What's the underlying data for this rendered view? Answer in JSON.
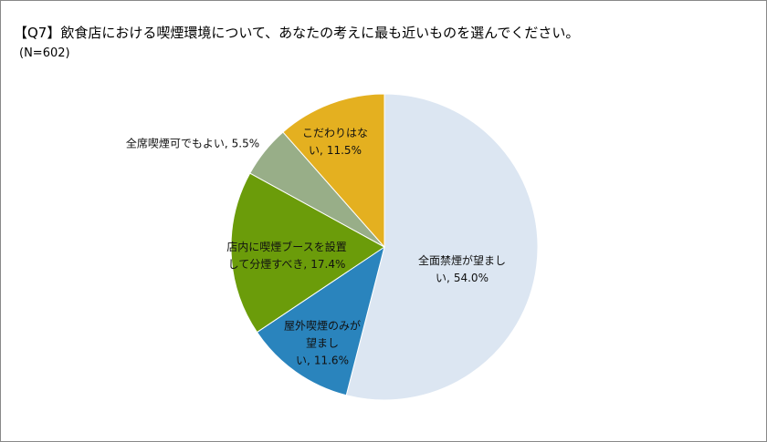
{
  "chart_data": {
    "type": "pie",
    "title": "【Q7】飲食店における喫煙環境について、あなたの考えに最も近いものを選んでください。",
    "subtitle": "(N=602)",
    "categories": [
      "全面禁煙が望ましい,",
      "屋外喫煙のみが望ましい,",
      "店内に喫煙ブースを設置して分煙すべき,",
      "全席喫煙可でもよい,",
      "こだわりはない,"
    ],
    "values": [
      54.0,
      11.6,
      17.4,
      5.5,
      11.5
    ],
    "value_labels": [
      "54.0%",
      "11.6%",
      "17.4%",
      "5.5%",
      "11.5%"
    ],
    "colors": [
      "#dce6f2",
      "#2a84bd",
      "#6b9c0a",
      "#98ae88",
      "#e4b020"
    ]
  }
}
